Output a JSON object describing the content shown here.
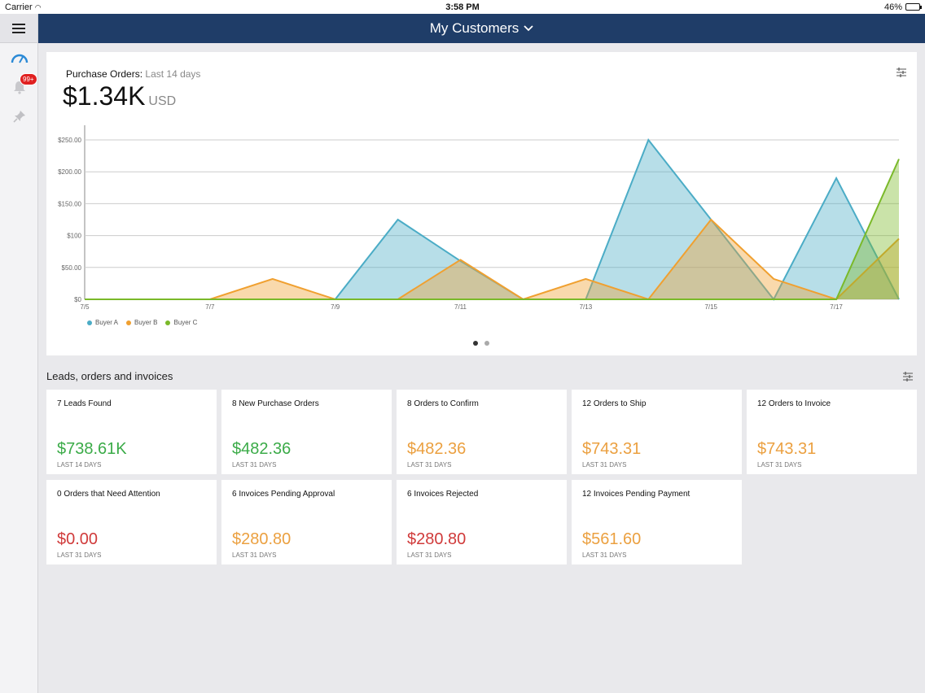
{
  "status_bar": {
    "carrier": "Carrier",
    "time": "3:58 PM",
    "battery": "46%",
    "battery_level": 0.46
  },
  "header": {
    "title": "My Customers"
  },
  "sidebar": {
    "notification_badge": "99+"
  },
  "purchase_orders": {
    "label": "Purchase Orders:",
    "period": "Last 14 days",
    "total": "$1.34K",
    "currency": "USD"
  },
  "chart_data": {
    "type": "area",
    "x_ticks": [
      "7/5",
      "7/7",
      "7/9",
      "7/11",
      "7/13",
      "7/15",
      "7/17"
    ],
    "y_ticks": [
      "$0",
      "$50.00",
      "$100",
      "$150.00",
      "$200.00",
      "$250.00"
    ],
    "ylim": [
      0,
      250
    ],
    "grid": true,
    "legend_position": "bottom-left",
    "series": [
      {
        "name": "Buyer A",
        "color": "#4bacc6",
        "points": [
          [
            "7/5",
            0
          ],
          [
            "7/9",
            0
          ],
          [
            "7/10",
            125
          ],
          [
            "7/11",
            60
          ],
          [
            "7/12",
            0
          ],
          [
            "7/13",
            0
          ],
          [
            "7/14",
            250
          ],
          [
            "7/15",
            125
          ],
          [
            "7/16",
            0
          ],
          [
            "7/17",
            190
          ],
          [
            "7/18",
            0
          ]
        ]
      },
      {
        "name": "Buyer B",
        "color": "#f0a030",
        "points": [
          [
            "7/5",
            0
          ],
          [
            "7/7",
            0
          ],
          [
            "7/8",
            32
          ],
          [
            "7/9",
            0
          ],
          [
            "7/10",
            0
          ],
          [
            "7/11",
            62
          ],
          [
            "7/12",
            0
          ],
          [
            "7/13",
            32
          ],
          [
            "7/14",
            0
          ],
          [
            "7/15",
            125
          ],
          [
            "7/16",
            32
          ],
          [
            "7/17",
            0
          ],
          [
            "7/18",
            95
          ]
        ]
      },
      {
        "name": "Buyer C",
        "color": "#7ab929",
        "points": [
          [
            "7/5",
            0
          ],
          [
            "7/17",
            0
          ],
          [
            "7/18",
            220
          ]
        ]
      }
    ]
  },
  "pager": {
    "pages": 2,
    "active": 0
  },
  "leads": {
    "title": "Leads, orders and invoices",
    "tiles": [
      {
        "title": "7 Leads Found",
        "value": "$738.61K",
        "period": "LAST 14 DAYS",
        "color": "#3bab48"
      },
      {
        "title": "8 New Purchase Orders",
        "value": "$482.36",
        "period": "LAST 31 DAYS",
        "color": "#3bab48"
      },
      {
        "title": "8 Orders to Confirm",
        "value": "$482.36",
        "period": "LAST 31 DAYS",
        "color": "#eba040"
      },
      {
        "title": "12 Orders to Ship",
        "value": "$743.31",
        "period": "LAST 31 DAYS",
        "color": "#eba040"
      },
      {
        "title": "12 Orders to Invoice",
        "value": "$743.31",
        "period": "LAST 31 DAYS",
        "color": "#eba040"
      },
      {
        "title": "0 Orders that Need Attention",
        "value": "$0.00",
        "period": "LAST 31 DAYS",
        "color": "#d03a3a"
      },
      {
        "title": "6 Invoices Pending Approval",
        "value": "$280.80",
        "period": "LAST 31 DAYS",
        "color": "#eba040"
      },
      {
        "title": "6 Invoices Rejected",
        "value": "$280.80",
        "period": "LAST 31 DAYS",
        "color": "#d03a3a"
      },
      {
        "title": "12 Invoices Pending Payment",
        "value": "$561.60",
        "period": "LAST 31 DAYS",
        "color": "#eba040"
      }
    ]
  }
}
